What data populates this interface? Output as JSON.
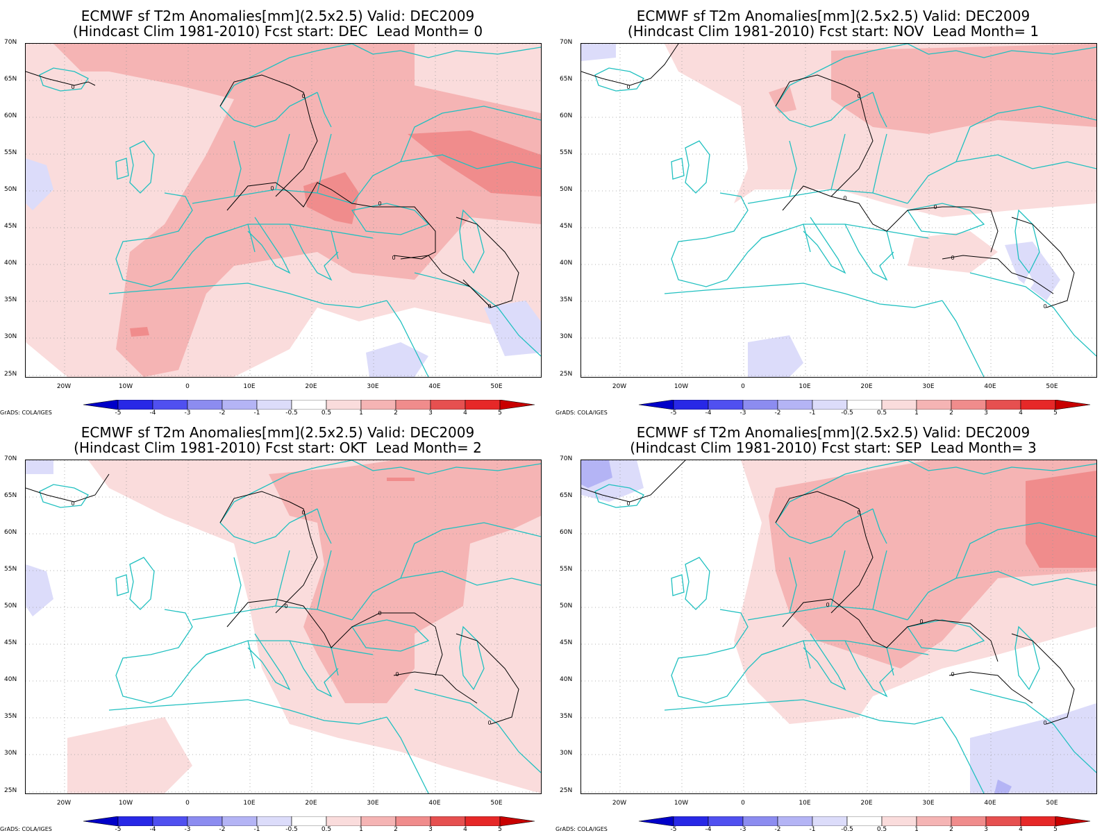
{
  "panels": [
    {
      "title_line1": "ECMWF sf T2m Anomalies[mm](2.5x2.5) Valid: DEC2009",
      "title_line2": "(Hindcast Clim 1981-2010) Fcst start: DEC  Lead Month= 0"
    },
    {
      "title_line1": "ECMWF sf T2m Anomalies[mm](2.5x2.5) Valid: DEC2009",
      "title_line2": "(Hindcast Clim 1981-2010) Fcst start: NOV  Lead Month= 1"
    },
    {
      "title_line1": "ECMWF sf T2m Anomalies[mm](2.5x2.5) Valid: DEC2009",
      "title_line2": "(Hindcast Clim 1981-2010) Fcst start: OKT  Lead Month= 2"
    },
    {
      "title_line1": "ECMWF sf T2m Anomalies[mm](2.5x2.5) Valid: DEC2009",
      "title_line2": "(Hindcast Clim 1981-2010) Fcst start: SEP  Lead Month= 3"
    }
  ],
  "axes": {
    "lat_labels": [
      "70N",
      "65N",
      "60N",
      "55N",
      "50N",
      "45N",
      "40N",
      "35N",
      "30N",
      "25N"
    ],
    "lon_labels": [
      "20W",
      "10W",
      "0",
      "10E",
      "20E",
      "30E",
      "40E",
      "50E"
    ]
  },
  "colorbar": {
    "labels": [
      "-5",
      "-4",
      "-3",
      "-2",
      "-1",
      "-0.5",
      "0.5",
      "1",
      "2",
      "3",
      "4",
      "5"
    ],
    "colors": [
      "#0000c8",
      "#2828e6",
      "#5050f0",
      "#8c8cf0",
      "#b4b4f5",
      "#dcdcfa",
      "#ffffff",
      "#fadcdc",
      "#f5b4b4",
      "#f08c8c",
      "#e65050",
      "#e62828",
      "#c80000"
    ]
  },
  "credit": "GrADS: COLA/IGES",
  "map_style": {
    "coast_color": "#20c0c0",
    "contour_color": "#000000",
    "contour_label": "0"
  }
}
